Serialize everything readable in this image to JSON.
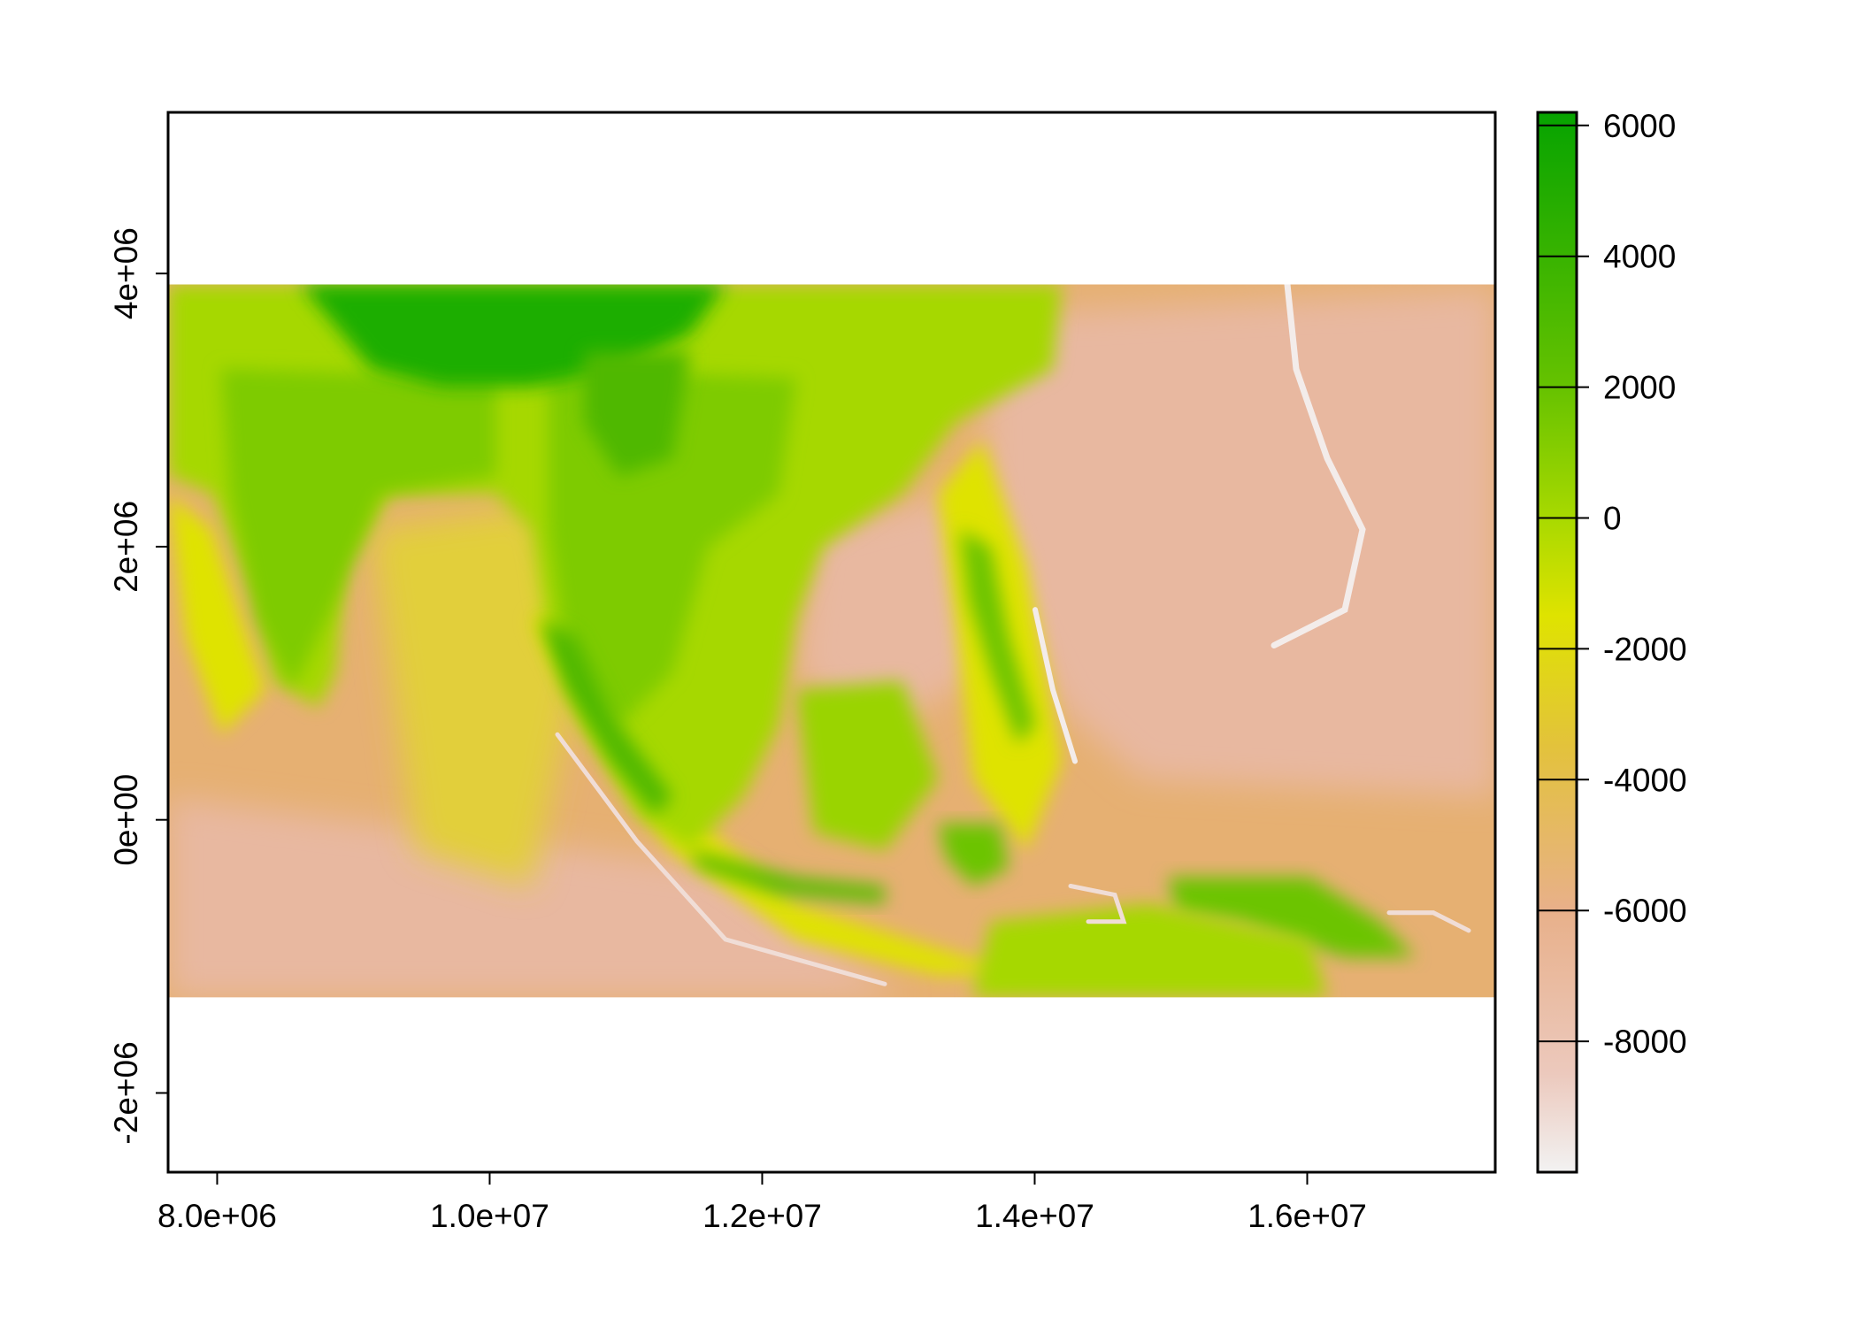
{
  "chart_data": {
    "type": "heatmap",
    "title": "",
    "xlabel": "",
    "ylabel": "",
    "xlim": [
      7640000,
      17380000
    ],
    "ylim": [
      -2580000,
      5180000
    ],
    "x_ticks": [
      8000000,
      10000000,
      12000000,
      14000000,
      16000000
    ],
    "x_tick_labels": [
      "8.0e+06",
      "1.0e+07",
      "1.2e+07",
      "1.4e+07",
      "1.6e+07"
    ],
    "y_ticks": [
      -2000000,
      0,
      2000000,
      4000000
    ],
    "y_tick_labels": [
      "-2e+06",
      "0e+00",
      "2e+06",
      "4e+06"
    ],
    "raster_extent": {
      "xmin": 7640000,
      "xmax": 17380000,
      "ymin": -1300000,
      "ymax": 3920000
    },
    "raster_description_colors": {
      "land_high": "#1fae00",
      "land_mid": "#6cc400",
      "land_low": "#a6d800",
      "shelf": "#d9e000",
      "ocean": "#e6b072",
      "deep_ocean": "#e8b8a0",
      "trench": "#f2f2f2"
    },
    "legend": {
      "position": "right",
      "min": -10000,
      "max": 6200,
      "ticks": [
        6000,
        4000,
        2000,
        0,
        -2000,
        -4000,
        -6000,
        -8000
      ],
      "tick_labels": [
        "6000",
        "4000",
        "2000",
        "0",
        "-2000",
        "-4000",
        "-6000",
        "-8000"
      ],
      "color_stops": [
        {
          "value": -10000,
          "color": "#f2f2f2"
        },
        {
          "value": -8500,
          "color": "#ecc9bd"
        },
        {
          "value": -6000,
          "color": "#e8b08a"
        },
        {
          "value": -3500,
          "color": "#e3c23c"
        },
        {
          "value": -1500,
          "color": "#dfe300"
        },
        {
          "value": 0,
          "color": "#a8d900"
        },
        {
          "value": 2000,
          "color": "#66c200"
        },
        {
          "value": 6200,
          "color": "#06a300"
        }
      ]
    },
    "grid": false
  }
}
